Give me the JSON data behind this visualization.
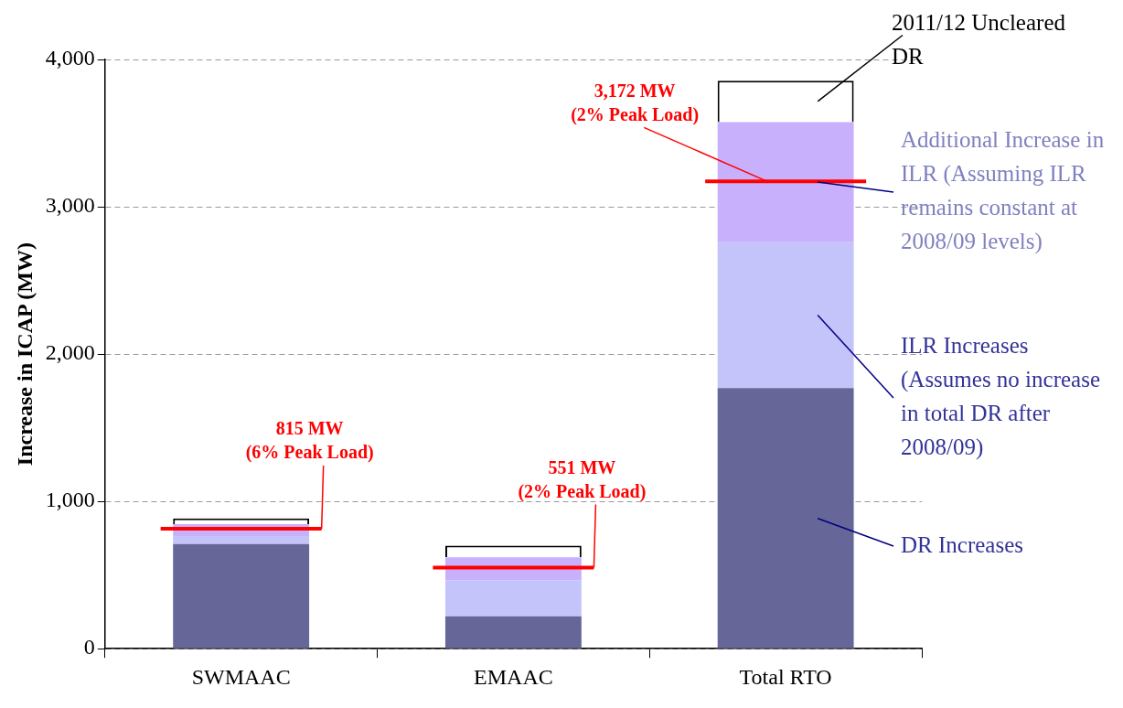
{
  "chart_data": {
    "type": "bar",
    "stacked": true,
    "ylabel": "Increase in ICAP (MW)",
    "categories": [
      "SWMAAC",
      "EMAAC",
      "Total RTO"
    ],
    "series": [
      {
        "name": "DR Increases",
        "color": "#666699",
        "values": [
          710,
          220,
          1770
        ]
      },
      {
        "name": "ILR Increases (Assumes no increase in total DR after 2008/09)",
        "color": "#c4c4fa",
        "values": [
          55,
          245,
          990
        ]
      },
      {
        "name": "Additional Increase in ILR (Assuming ILR remains constant at 2008/09 levels)",
        "color": "#c8b0fc",
        "values": [
          80,
          155,
          815
        ]
      },
      {
        "name": "2011/12 Uncleared DR",
        "color": "#ffffff",
        "values": [
          40,
          80,
          280
        ]
      }
    ],
    "ref_lines": [
      {
        "axis": "y",
        "value": 815,
        "label": "815 MW\n(6% Peak Load)",
        "color": "#ff0000"
      },
      {
        "axis": "y",
        "value": 551,
        "label": "551 MW\n(2% Peak Load)",
        "color": "#ff0000"
      },
      {
        "axis": "y",
        "value": 3172,
        "label": "3,172 MW\n(2% Peak Load)",
        "color": "#ff0000"
      }
    ],
    "ylim": [
      0,
      4000
    ],
    "yticks": [
      {
        "value": 0,
        "label": "0"
      },
      {
        "value": 1000,
        "label": "1,000"
      },
      {
        "value": 2000,
        "label": "2,000"
      },
      {
        "value": 3000,
        "label": "3,000"
      },
      {
        "value": 4000,
        "label": "4,000"
      }
    ],
    "grid": "y",
    "legend": false
  }
}
